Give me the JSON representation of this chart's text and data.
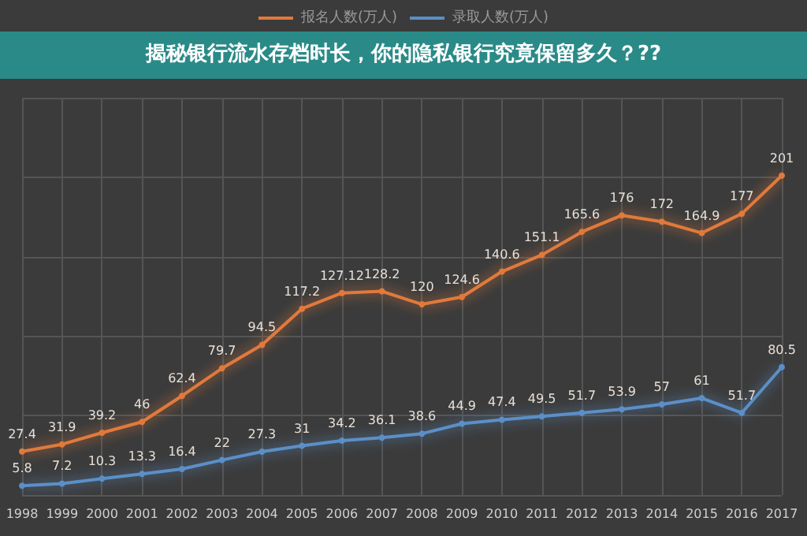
{
  "chart_data": {
    "type": "line",
    "title": "揭秘银行流水存档时长，你的隐私银行究竟保留多久？??",
    "categories": [
      "1998",
      "1999",
      "2000",
      "2001",
      "2002",
      "2003",
      "2004",
      "2005",
      "2006",
      "2007",
      "2008",
      "2009",
      "2010",
      "2011",
      "2012",
      "2013",
      "2014",
      "2015",
      "2016",
      "2017"
    ],
    "series": [
      {
        "name": "报名人数(万人)",
        "color": "#e07a3c",
        "values": [
          27.4,
          31.9,
          39.2,
          46,
          62.4,
          79.7,
          94.5,
          117.2,
          127.12,
          128.2,
          120,
          124.6,
          140.6,
          151.1,
          165.6,
          176,
          172,
          164.9,
          177,
          201
        ]
      },
      {
        "name": "录取人数(万人)",
        "color": "#5b8fc7",
        "values": [
          5.8,
          7.2,
          10.3,
          13.3,
          16.4,
          22,
          27.3,
          31,
          34.2,
          36.1,
          38.6,
          44.9,
          47.4,
          49.5,
          51.7,
          53.9,
          57,
          61,
          51.7,
          80.5
        ]
      }
    ],
    "data_labels": true,
    "grid": true,
    "legend": "top",
    "marker": "circle",
    "line_style": "solid"
  }
}
